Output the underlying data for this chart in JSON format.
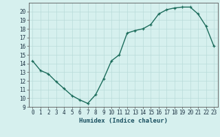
{
  "x_vals": [
    0,
    1,
    2,
    3,
    4,
    5,
    6,
    7,
    8,
    9,
    10,
    11,
    12,
    13,
    14,
    15,
    16,
    17,
    18,
    19,
    20,
    21,
    22,
    23
  ],
  "y_vals": [
    14.3,
    13.2,
    12.8,
    11.9,
    11.1,
    10.3,
    9.8,
    9.4,
    10.4,
    12.2,
    14.3,
    15.0,
    17.5,
    17.8,
    18.0,
    18.5,
    19.7,
    20.2,
    20.4,
    20.5,
    20.5,
    19.7,
    18.3,
    16.0
  ],
  "line_color": "#1a6b5a",
  "bg_color": "#d6f0ee",
  "grid_color": "#b8dbd9",
  "xlabel": "Humidex (Indice chaleur)",
  "ylim": [
    9,
    21
  ],
  "xlim": [
    -0.5,
    23.5
  ],
  "yticks": [
    9,
    10,
    11,
    12,
    13,
    14,
    15,
    16,
    17,
    18,
    19,
    20
  ],
  "ytick_labels": [
    "9",
    "10",
    "11",
    "12",
    "13",
    "14",
    "15",
    "16",
    "17",
    "18",
    "19",
    "20"
  ],
  "xticks": [
    0,
    1,
    2,
    3,
    4,
    5,
    6,
    7,
    8,
    9,
    10,
    11,
    12,
    13,
    14,
    15,
    16,
    17,
    18,
    19,
    20,
    21,
    22,
    23
  ],
  "xtick_labels": [
    "0",
    "1",
    "2",
    "3",
    "4",
    "5",
    "6",
    "7",
    "8",
    "9",
    "10",
    "11",
    "12",
    "13",
    "14",
    "15",
    "16",
    "17",
    "18",
    "19",
    "20",
    "21",
    "22",
    "23"
  ],
  "marker": "+",
  "markersize": 3.5,
  "linewidth": 1.0,
  "tick_fontsize": 5.5,
  "xlabel_fontsize": 6.5
}
